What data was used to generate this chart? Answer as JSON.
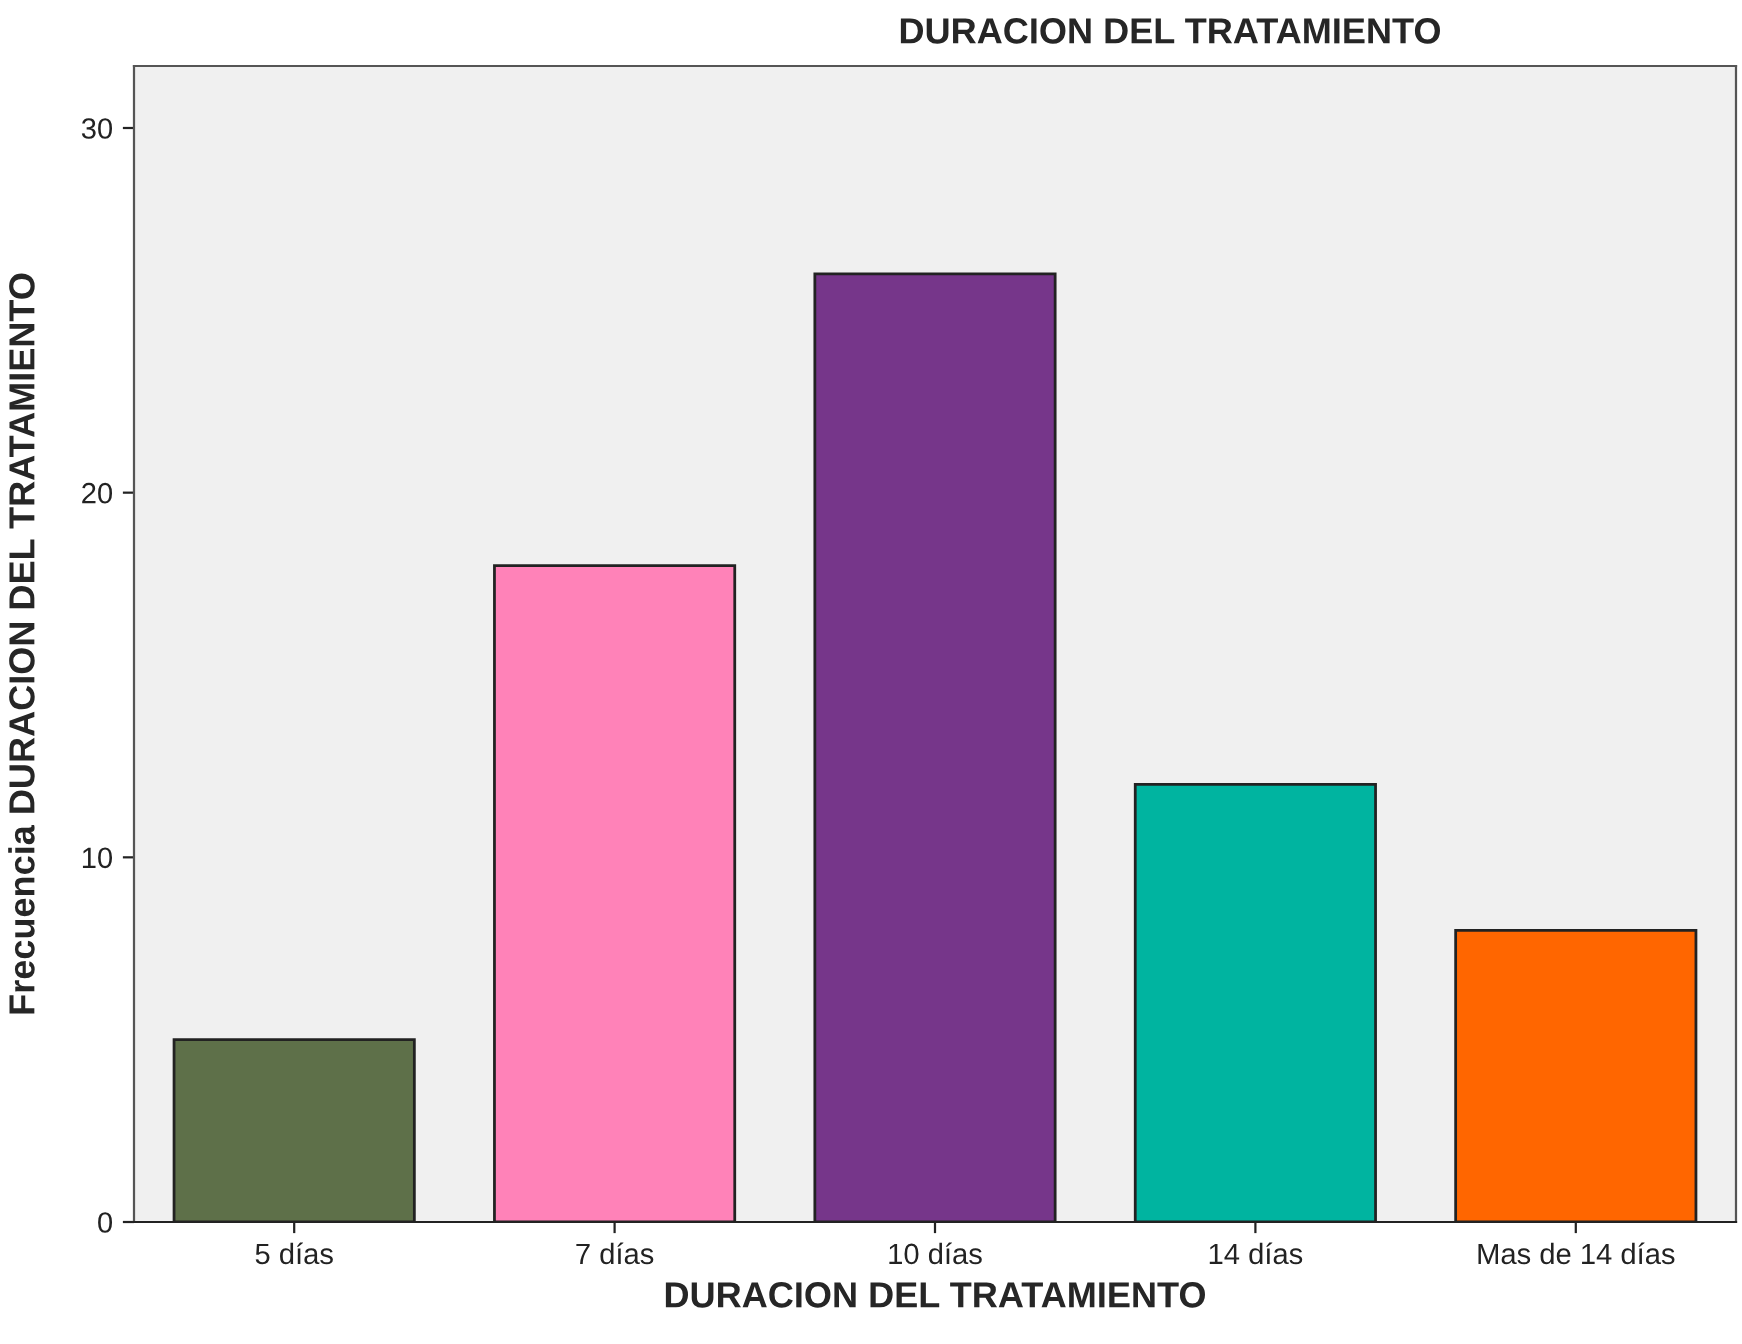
{
  "chart_data": {
    "type": "bar",
    "title": "DURACION DEL TRATAMIENTO",
    "xlabel": "DURACION DEL TRATAMIENTO",
    "ylabel": "Frecuencia DURACION DEL TRATAMIENTO",
    "categories": [
      "5 días",
      "7 días",
      "10 días",
      "14 días",
      "Mas de 14 días"
    ],
    "values": [
      5,
      18,
      26,
      12,
      8
    ],
    "colors": [
      "#5e7049",
      "#ff82b8",
      "#76368a",
      "#00b4a0",
      "#ff6600"
    ],
    "ylim": [
      0,
      31.7
    ],
    "yticks": [
      0,
      10,
      20,
      30
    ],
    "grid": false
  }
}
